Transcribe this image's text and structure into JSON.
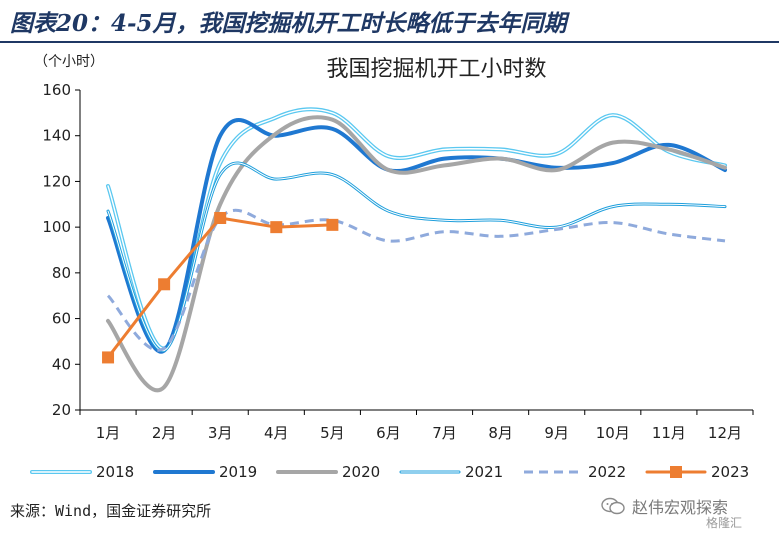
{
  "figure_title": "图表20：4-5月，我国挖掘机开工时长略低于去年同期",
  "source": "来源：Wind，国金证券研究所",
  "watermark": {
    "text": "赵伟宏观探索",
    "sub": "格隆汇"
  },
  "chart_data": {
    "type": "line",
    "title": "我国挖掘机开工小时数",
    "ylabel": "（个小时）",
    "xlabel": "",
    "categories": [
      "1月",
      "2月",
      "3月",
      "4月",
      "5月",
      "6月",
      "7月",
      "8月",
      "9月",
      "10月",
      "11月",
      "12月"
    ],
    "yticks": [
      20,
      40,
      60,
      80,
      100,
      120,
      140,
      160
    ],
    "ylim": [
      20,
      160
    ],
    "grid": false,
    "legend_position": "bottom",
    "series": [
      {
        "name": "2018",
        "color": "#5bc8f0",
        "style": "double",
        "width": 4,
        "values": [
          118,
          47,
          128,
          148,
          150,
          131,
          134,
          134,
          132,
          149,
          133,
          127
        ]
      },
      {
        "name": "2019",
        "color": "#1f78d1",
        "style": "solid",
        "width": 4,
        "values": [
          104,
          46,
          140,
          140,
          143,
          125,
          130,
          130,
          126,
          128,
          136,
          125
        ]
      },
      {
        "name": "2020",
        "color": "#a6a6a6",
        "style": "solid",
        "width": 4,
        "values": [
          59,
          30,
          110,
          141,
          147,
          125,
          127,
          130,
          125,
          137,
          134,
          126
        ]
      },
      {
        "name": "2021",
        "color": "#1f9fdc",
        "style": "double",
        "width": 3,
        "values": [
          107,
          46,
          123,
          121,
          123,
          107,
          103,
          103,
          100,
          109,
          110,
          109
        ]
      },
      {
        "name": "2022",
        "color": "#8faadc",
        "style": "dashed",
        "width": 3,
        "values": [
          70,
          47,
          104,
          101,
          103,
          94,
          98,
          96,
          99,
          102,
          97,
          94
        ]
      },
      {
        "name": "2023",
        "color": "#ed7d31",
        "style": "marker",
        "width": 3,
        "values": [
          43,
          75,
          104,
          100,
          101,
          null,
          null,
          null,
          null,
          null,
          null,
          null
        ]
      }
    ]
  }
}
